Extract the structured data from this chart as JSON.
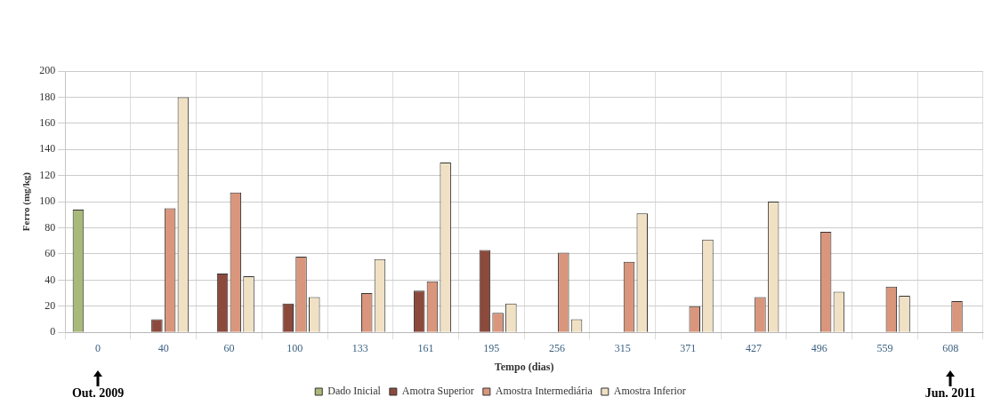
{
  "chart_data": {
    "type": "bar",
    "xlabel": "Tempo (dias)",
    "ylabel": "Ferro (mg/kg)",
    "categories": [
      "0",
      "40",
      "60",
      "100",
      "133",
      "161",
      "195",
      "256",
      "315",
      "371",
      "427",
      "496",
      "559",
      "608"
    ],
    "series": [
      {
        "name": "Dado Inicial",
        "color": "#a9b97a",
        "values": [
          94,
          null,
          null,
          null,
          null,
          null,
          null,
          null,
          null,
          null,
          null,
          null,
          null,
          null
        ]
      },
      {
        "name": "Amotra Superior",
        "color": "#8b4a3c",
        "values": [
          null,
          10,
          45,
          22,
          null,
          32,
          63,
          null,
          null,
          null,
          null,
          null,
          null,
          null
        ]
      },
      {
        "name": "Amostra Intermediária",
        "color": "#d9967c",
        "values": [
          null,
          95,
          107,
          58,
          30,
          39,
          15,
          61,
          54,
          20,
          27,
          77,
          35,
          24
        ]
      },
      {
        "name": "Amostra Inferior",
        "color": "#f1e1c4",
        "values": [
          null,
          180,
          43,
          27,
          56,
          130,
          22,
          10,
          91,
          71,
          100,
          31,
          28,
          null
        ]
      }
    ],
    "ylim": [
      0,
      200
    ],
    "yticks": [
      0,
      20,
      40,
      60,
      80,
      100,
      120,
      140,
      160,
      180,
      200
    ],
    "grid": true,
    "legend": "bottom",
    "annotations": [
      "Out. 2009",
      "Jun. 2011"
    ]
  }
}
